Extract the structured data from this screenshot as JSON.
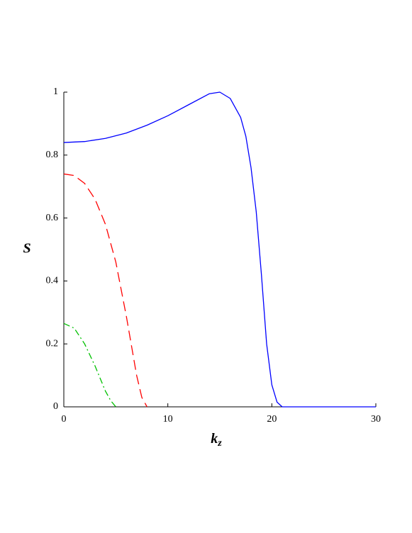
{
  "chart_data": {
    "type": "line",
    "xlabel": "k",
    "xlabel_subscript": "z",
    "ylabel": "S",
    "xlim": [
      0,
      30
    ],
    "xticks": [
      0,
      10,
      20,
      30
    ],
    "ylim": [
      0,
      1
    ],
    "yticks": [
      0,
      0.2,
      0.4,
      0.6,
      0.8,
      1
    ],
    "series": [
      {
        "color": "#0000ff",
        "dash": "solid",
        "x": [
          0,
          2,
          4,
          6,
          8,
          10,
          12,
          14,
          15,
          16,
          17,
          17.5,
          18,
          18.5,
          19,
          19.5,
          20,
          20.5,
          21,
          25,
          30
        ],
        "values": [
          0.84,
          0.843,
          0.853,
          0.87,
          0.895,
          0.925,
          0.96,
          0.995,
          1.0,
          0.98,
          0.92,
          0.86,
          0.76,
          0.62,
          0.42,
          0.2,
          0.07,
          0.015,
          0,
          0,
          0
        ]
      },
      {
        "color": "#ff0000",
        "dash": "dashed",
        "x": [
          0,
          1,
          2,
          3,
          4,
          5,
          6,
          7,
          7.5,
          8
        ],
        "values": [
          0.74,
          0.735,
          0.71,
          0.66,
          0.58,
          0.46,
          0.29,
          0.1,
          0.03,
          0
        ]
      },
      {
        "color": "#00c000",
        "dash": "dashdot",
        "x": [
          0,
          1,
          2,
          3,
          4,
          4.5,
          5
        ],
        "values": [
          0.265,
          0.25,
          0.2,
          0.13,
          0.05,
          0.02,
          0
        ]
      }
    ]
  }
}
